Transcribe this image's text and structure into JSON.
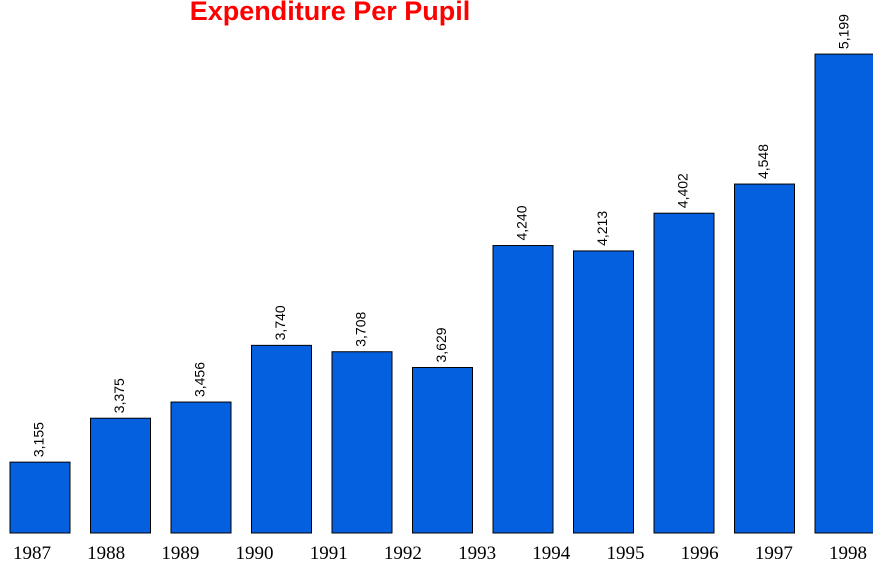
{
  "chart_data": {
    "type": "bar",
    "title": "Expenditure Per Pupil",
    "values": [
      3155,
      3375,
      3456,
      3740,
      3708,
      3629,
      4240,
      4213,
      4402,
      4548,
      5199
    ],
    "value_labels": [
      "3,155",
      "3,375",
      "3,456",
      "3,740",
      "3,708",
      "3,629",
      "4,240",
      "4,213",
      "4,402",
      "4,548",
      "5,199"
    ],
    "x_tick_labels": [
      "1987",
      "1988",
      "1989",
      "1990",
      "1991",
      "1992",
      "1993",
      "1994",
      "1995",
      "1996",
      "1997",
      "1998"
    ],
    "color": "#0560e0",
    "title_color": "#ff0000",
    "ylim": [
      2800,
      5470
    ]
  }
}
